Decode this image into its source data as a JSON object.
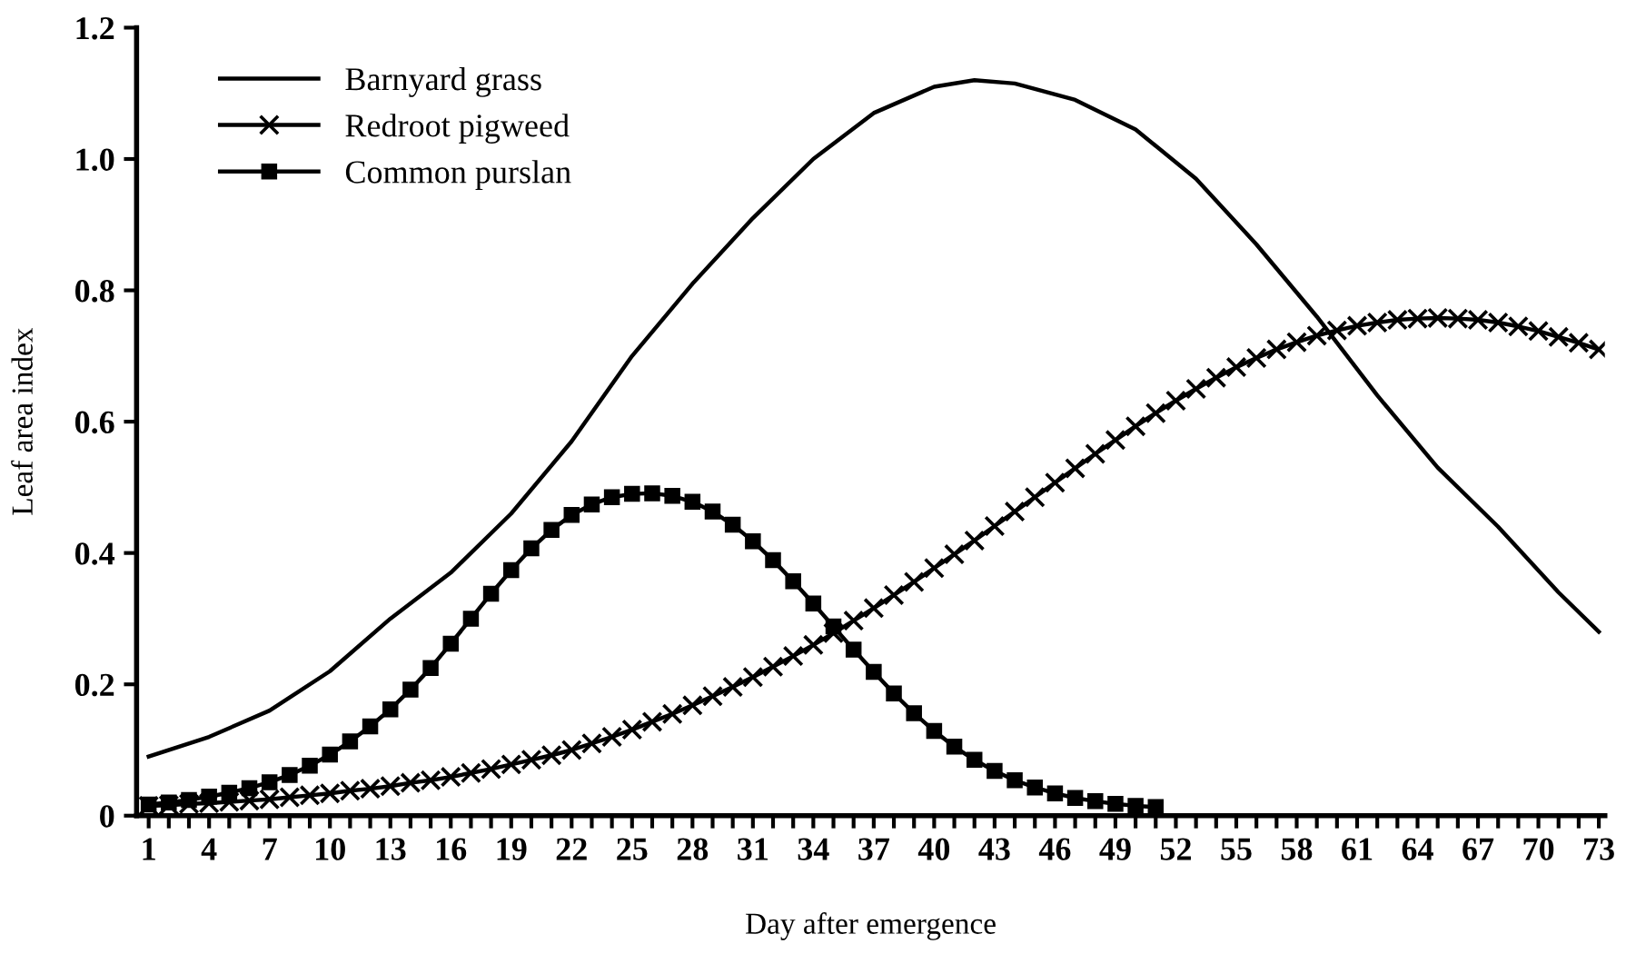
{
  "chart_data": {
    "type": "line",
    "xlabel": "Day after emergence",
    "ylabel": "Leaf area index",
    "xlim": [
      0.4,
      73.3
    ],
    "ylim": [
      0,
      1.2
    ],
    "xticks": [
      1,
      {
        "value": 2,
        "label": null
      },
      {
        "value": 3,
        "label": null
      },
      4,
      {
        "value": 5,
        "label": null
      },
      {
        "value": 6,
        "label": null
      },
      7,
      {
        "value": 8,
        "label": null
      },
      {
        "value": 9,
        "label": null
      },
      10,
      {
        "value": 11,
        "label": null
      },
      {
        "value": 12,
        "label": null
      },
      13,
      {
        "value": 14,
        "label": null
      },
      {
        "value": 15,
        "label": null
      },
      16,
      {
        "value": 17,
        "label": null
      },
      {
        "value": 18,
        "label": null
      },
      19,
      {
        "value": 20,
        "label": null
      },
      {
        "value": 21,
        "label": null
      },
      22,
      {
        "value": 23,
        "label": null
      },
      {
        "value": 24,
        "label": null
      },
      25,
      {
        "value": 26,
        "label": null
      },
      {
        "value": 27,
        "label": null
      },
      28,
      {
        "value": 29,
        "label": null
      },
      {
        "value": 30,
        "label": null
      },
      31,
      {
        "value": 32,
        "label": null
      },
      {
        "value": 33,
        "label": null
      },
      34,
      {
        "value": 35,
        "label": null
      },
      {
        "value": 36,
        "label": null
      },
      37,
      {
        "value": 38,
        "label": null
      },
      {
        "value": 39,
        "label": null
      },
      40,
      {
        "value": 41,
        "label": null
      },
      {
        "value": 42,
        "label": null
      },
      43,
      {
        "value": 44,
        "label": null
      },
      {
        "value": 45,
        "label": null
      },
      46,
      {
        "value": 47,
        "label": null
      },
      {
        "value": 48,
        "label": null
      },
      49,
      {
        "value": 50,
        "label": null
      },
      {
        "value": 51,
        "label": null
      },
      52,
      {
        "value": 53,
        "label": null
      },
      {
        "value": 54,
        "label": null
      },
      55,
      {
        "value": 56,
        "label": null
      },
      {
        "value": 57,
        "label": null
      },
      58,
      {
        "value": 59,
        "label": null
      },
      {
        "value": 60,
        "label": null
      },
      61,
      {
        "value": 62,
        "label": null
      },
      {
        "value": 63,
        "label": null
      },
      64,
      {
        "value": 65,
        "label": null
      },
      {
        "value": 66,
        "label": null
      },
      67,
      {
        "value": 68,
        "label": null
      },
      {
        "value": 69,
        "label": null
      },
      70,
      {
        "value": 71,
        "label": null
      },
      {
        "value": 72,
        "label": null
      },
      73
    ],
    "yticks": [
      0,
      0.2,
      0.4,
      0.6,
      0.8,
      {
        "value": 1,
        "label": "1.0"
      },
      1.2
    ],
    "grid": false,
    "legend": "top left",
    "series": [
      {
        "name": "Barnyard grass",
        "color": "#000000",
        "marker": "none",
        "x": [
          1,
          4,
          7,
          10,
          13,
          16,
          19,
          22,
          25,
          28,
          31,
          34,
          37,
          40,
          42,
          44,
          47,
          50,
          53,
          56,
          59,
          62,
          65,
          68,
          71,
          73
        ],
        "values": [
          0.09,
          0.12,
          0.16,
          0.22,
          0.3,
          0.37,
          0.46,
          0.57,
          0.7,
          0.81,
          0.91,
          1.0,
          1.07,
          1.11,
          1.12,
          1.115,
          1.09,
          1.045,
          0.97,
          0.87,
          0.76,
          0.64,
          0.53,
          0.44,
          0.34,
          0.28
        ]
      },
      {
        "name": "Redroot pigweed",
        "color": "#000000",
        "marker": "cross",
        "x": [
          1,
          2,
          3,
          4,
          5,
          6,
          7,
          8,
          9,
          10,
          11,
          12,
          13,
          14,
          15,
          16,
          17,
          18,
          19,
          20,
          21,
          22,
          23,
          24,
          25,
          26,
          27,
          28,
          29,
          30,
          31,
          32,
          33,
          34,
          35,
          36,
          37,
          38,
          39,
          40,
          41,
          42,
          43,
          44,
          45,
          46,
          47,
          48,
          49,
          50,
          51,
          52,
          53,
          54,
          55,
          56,
          57,
          58,
          59,
          60,
          61,
          62,
          63,
          64,
          65,
          66,
          67,
          68,
          69,
          70,
          71,
          72,
          73
        ],
        "values": [
          0.015,
          0.016,
          0.018,
          0.019,
          0.021,
          0.023,
          0.025,
          0.028,
          0.031,
          0.034,
          0.038,
          0.041,
          0.045,
          0.05,
          0.054,
          0.059,
          0.065,
          0.071,
          0.078,
          0.085,
          0.092,
          0.1,
          0.11,
          0.12,
          0.131,
          0.143,
          0.155,
          0.168,
          0.182,
          0.196,
          0.211,
          0.227,
          0.243,
          0.26,
          0.278,
          0.297,
          0.316,
          0.336,
          0.356,
          0.377,
          0.398,
          0.419,
          0.441,
          0.463,
          0.485,
          0.507,
          0.529,
          0.551,
          0.572,
          0.593,
          0.613,
          0.632,
          0.65,
          0.667,
          0.683,
          0.697,
          0.71,
          0.721,
          0.731,
          0.739,
          0.746,
          0.751,
          0.755,
          0.757,
          0.758,
          0.757,
          0.755,
          0.751,
          0.745,
          0.738,
          0.729,
          0.72,
          0.71
        ]
      },
      {
        "name": "Common purslan",
        "color": "#000000",
        "marker": "square",
        "x": [
          1,
          2,
          3,
          4,
          5,
          6,
          7,
          8,
          9,
          10,
          11,
          12,
          13,
          14,
          15,
          16,
          17,
          18,
          19,
          20,
          21,
          22,
          23,
          24,
          25,
          26,
          27,
          28,
          29,
          30,
          31,
          32,
          33,
          34,
          35,
          36,
          37,
          38,
          39,
          40,
          41,
          42,
          43,
          44,
          45,
          46,
          47,
          48,
          49,
          50,
          51
        ],
        "values": [
          0.017,
          0.02,
          0.024,
          0.029,
          0.035,
          0.042,
          0.051,
          0.062,
          0.076,
          0.093,
          0.113,
          0.136,
          0.162,
          0.192,
          0.225,
          0.262,
          0.3,
          0.338,
          0.374,
          0.407,
          0.435,
          0.458,
          0.474,
          0.485,
          0.49,
          0.491,
          0.487,
          0.478,
          0.463,
          0.443,
          0.418,
          0.389,
          0.357,
          0.323,
          0.288,
          0.253,
          0.219,
          0.186,
          0.156,
          0.129,
          0.105,
          0.085,
          0.068,
          0.054,
          0.043,
          0.034,
          0.027,
          0.022,
          0.018,
          0.015,
          0.013
        ]
      }
    ]
  }
}
